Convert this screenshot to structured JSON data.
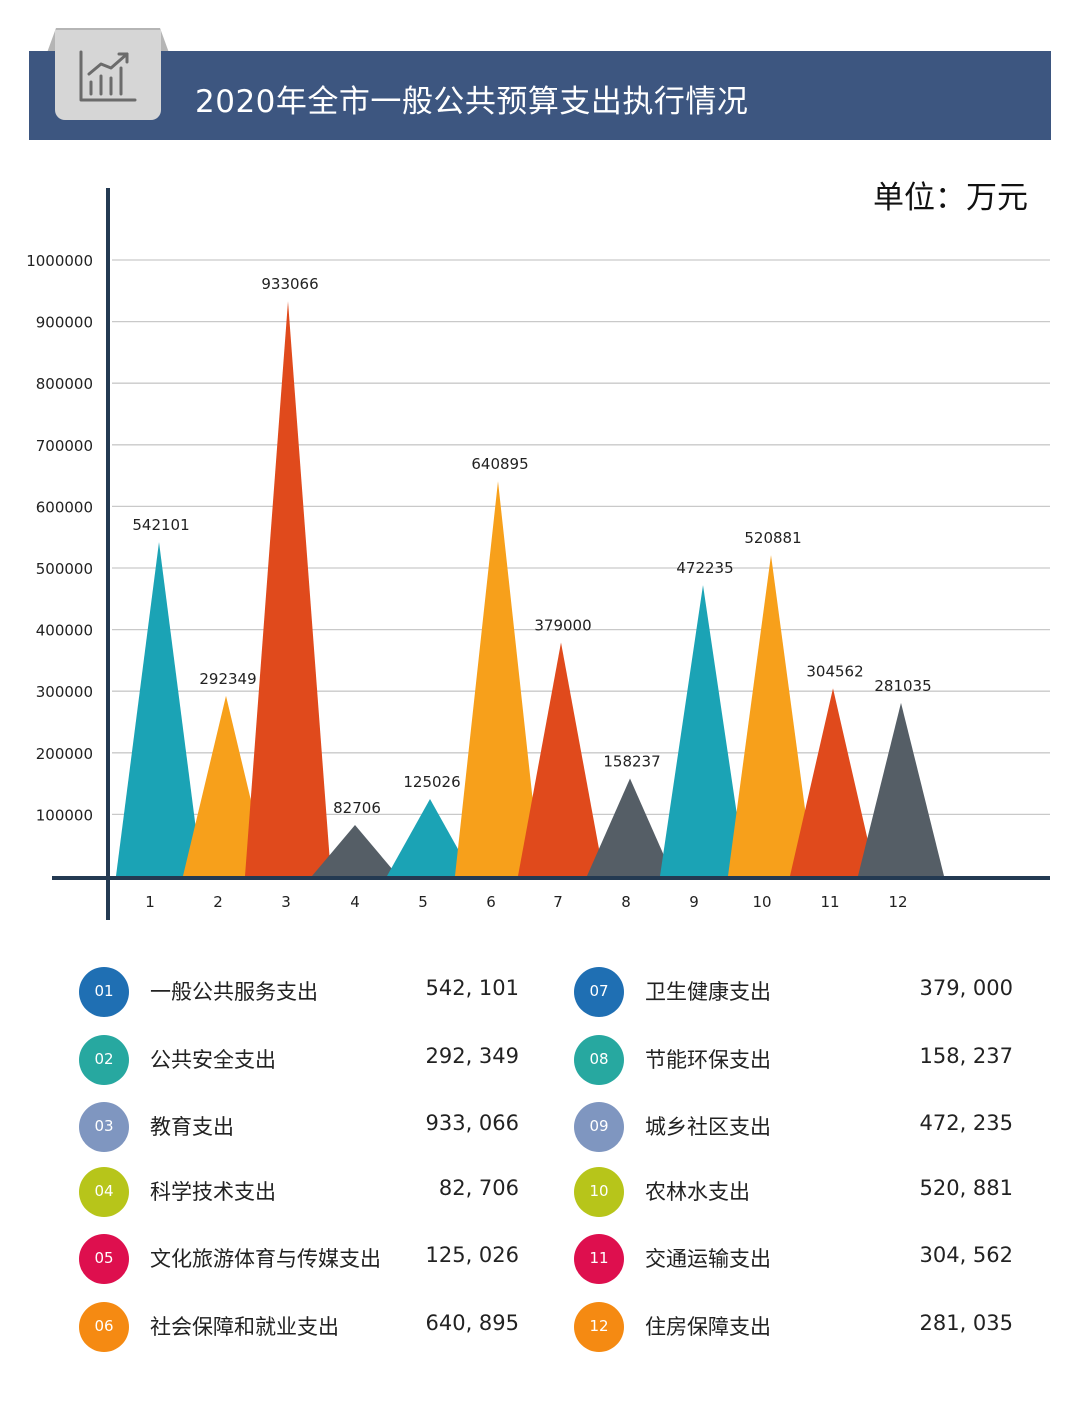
{
  "title": "2020年全市一般公共预算支出执行情况",
  "unit": "单位：万元",
  "chart_data": {
    "type": "area",
    "categories": [
      "1",
      "2",
      "3",
      "4",
      "5",
      "6",
      "7",
      "8",
      "9",
      "10",
      "11",
      "12"
    ],
    "values": [
      542101,
      292349,
      933066,
      82706,
      125026,
      640895,
      379000,
      158237,
      472235,
      520881,
      304562,
      281035
    ],
    "data_labels": [
      "542101",
      "292349",
      "933066",
      "82706",
      "125026",
      "640895",
      "379000",
      "158237",
      "472235",
      "520881",
      "304562",
      "281035"
    ],
    "y_ticks": [
      "100000",
      "200000",
      "300000",
      "400000",
      "500000",
      "600000",
      "700000",
      "800000",
      "900000",
      "1000000"
    ],
    "ylim": [
      0,
      1000000
    ],
    "grid": true,
    "colors": [
      "#1ba3b5",
      "#f7a01b",
      "#e04a1c",
      "#555e66",
      "#1ba3b5",
      "#f7a01b",
      "#e04a1c",
      "#555e66",
      "#1ba3b5",
      "#f7a01b",
      "#e04a1c",
      "#555e66"
    ]
  },
  "legend": [
    {
      "badge": "01",
      "name": "一般公共服务支出",
      "value": "542, 101",
      "color": "#1f6fb3"
    },
    {
      "badge": "02",
      "name": "公共安全支出",
      "value": "292, 349",
      "color": "#27a8a0"
    },
    {
      "badge": "03",
      "name": "教育支出",
      "value": "933, 066",
      "color": "#7f96c0"
    },
    {
      "badge": "04",
      "name": "科学技术支出",
      "value": "82, 706",
      "color": "#b7c51a"
    },
    {
      "badge": "05",
      "name": "文化旅游体育与传媒支出",
      "value": "125, 026",
      "color": "#de0f4e"
    },
    {
      "badge": "06",
      "name": "社会保障和就业支出",
      "value": "640, 895",
      "color": "#f58a12"
    },
    {
      "badge": "07",
      "name": "卫生健康支出",
      "value": "379, 000",
      "color": "#1f6fb3"
    },
    {
      "badge": "08",
      "name": "节能环保支出",
      "value": "158, 237",
      "color": "#27a8a0"
    },
    {
      "badge": "09",
      "name": "城乡社区支出",
      "value": "472, 235",
      "color": "#7f96c0"
    },
    {
      "badge": "10",
      "name": "农林水支出",
      "value": "520, 881",
      "color": "#b7c51a"
    },
    {
      "badge": "11",
      "name": "交通运输支出",
      "value": "304, 562",
      "color": "#de0f4e"
    },
    {
      "badge": "12",
      "name": "住房保障支出",
      "value": "281, 035",
      "color": "#f58a12"
    }
  ]
}
